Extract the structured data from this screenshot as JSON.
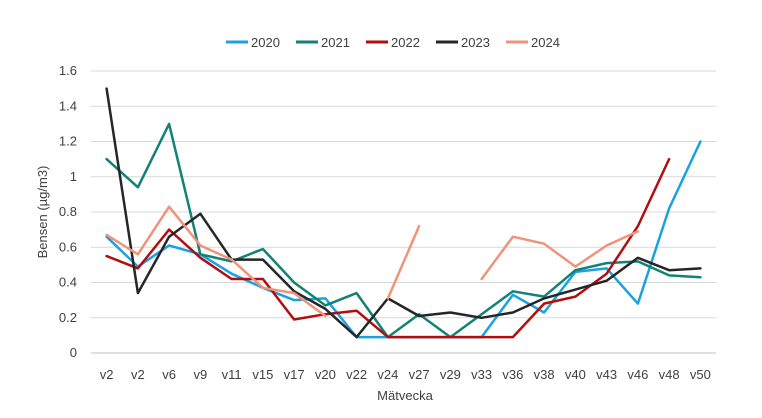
{
  "chart_data": {
    "type": "line",
    "xlabel": "Mätvecka",
    "ylabel": "Bensen (µg/m3)",
    "ylim": [
      0,
      1.6
    ],
    "yticks": [
      "0",
      "0.2",
      "0.4",
      "0.6",
      "0.8",
      "1",
      "1.2",
      "1.4",
      "1.6"
    ],
    "grid": true,
    "legend_position": "top-center",
    "categories": [
      "v2",
      "v2",
      "v6",
      "v9",
      "v11",
      "v15",
      "v17",
      "v20",
      "v22",
      "v24",
      "v27",
      "v29",
      "v33",
      "v36",
      "v38",
      "v40",
      "v43",
      "v46",
      "v48",
      "v50"
    ],
    "series": [
      {
        "name": "2020",
        "color": "#1ba1e2",
        "values": [
          0.66,
          0.49,
          0.61,
          0.56,
          0.45,
          0.37,
          0.3,
          0.31,
          0.09,
          0.09,
          0.09,
          0.09,
          0.09,
          0.33,
          0.23,
          0.46,
          0.48,
          0.28,
          0.82,
          1.2
        ]
      },
      {
        "name": "2021",
        "color": "#128277",
        "values": [
          1.1,
          0.94,
          1.3,
          0.56,
          0.52,
          0.59,
          0.4,
          0.27,
          0.34,
          0.09,
          0.22,
          0.09,
          0.22,
          0.35,
          0.32,
          0.47,
          0.51,
          0.52,
          0.44,
          0.43
        ]
      },
      {
        "name": "2022",
        "color": "#b10f0f",
        "values": [
          0.55,
          0.48,
          0.7,
          0.54,
          0.42,
          0.42,
          0.19,
          0.22,
          0.24,
          0.09,
          0.09,
          0.09,
          0.09,
          0.09,
          0.28,
          0.32,
          0.45,
          0.72,
          1.1,
          null
        ]
      },
      {
        "name": "2023",
        "color": "#262626",
        "values": [
          1.5,
          0.34,
          0.66,
          0.79,
          0.53,
          0.53,
          0.35,
          0.25,
          0.09,
          0.31,
          0.21,
          0.23,
          0.2,
          0.23,
          0.31,
          0.36,
          0.41,
          0.54,
          0.47,
          0.48
        ]
      },
      {
        "name": "2024",
        "color": "#f0937a",
        "values": [
          0.67,
          0.56,
          0.83,
          0.61,
          0.53,
          0.37,
          0.34,
          0.21,
          null,
          0.31,
          0.72,
          null,
          0.42,
          0.66,
          0.62,
          0.49,
          0.61,
          0.69,
          null,
          null
        ]
      }
    ]
  }
}
